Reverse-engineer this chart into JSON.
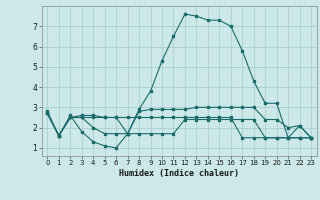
{
  "xlabel": "Humidex (Indice chaleur)",
  "bg_color": "#cce8e8",
  "line_color": "#1a6b6b",
  "grid_color": "#aad0d0",
  "xlim": [
    -0.5,
    23.5
  ],
  "ylim": [
    0.6,
    8.0
  ],
  "yticks": [
    1,
    2,
    3,
    4,
    5,
    6,
    7
  ],
  "xticks": [
    0,
    1,
    2,
    3,
    4,
    5,
    6,
    7,
    8,
    9,
    10,
    11,
    12,
    13,
    14,
    15,
    16,
    17,
    18,
    19,
    20,
    21,
    22,
    23
  ],
  "series1_x": [
    0,
    1,
    2,
    3,
    4,
    5,
    6,
    7,
    8,
    9,
    10,
    11,
    12,
    13,
    14,
    15,
    16,
    17,
    18,
    19,
    20,
    21,
    22,
    23
  ],
  "series1_y": [
    2.8,
    1.6,
    2.6,
    1.8,
    1.3,
    1.1,
    1.0,
    1.7,
    2.9,
    3.8,
    5.3,
    6.5,
    7.6,
    7.5,
    7.3,
    7.3,
    7.0,
    5.8,
    4.3,
    3.2,
    3.2,
    1.5,
    2.1,
    1.5
  ],
  "series2_x": [
    0,
    1,
    2,
    3,
    4,
    5,
    6,
    7,
    8,
    9,
    10,
    11,
    12,
    13,
    14,
    15,
    16,
    17,
    18,
    19,
    20,
    21,
    22,
    23
  ],
  "series2_y": [
    2.7,
    1.6,
    2.5,
    2.6,
    2.6,
    2.5,
    2.5,
    1.7,
    2.8,
    2.9,
    2.9,
    2.9,
    2.9,
    3.0,
    3.0,
    3.0,
    3.0,
    3.0,
    3.0,
    2.4,
    2.4,
    2.0,
    2.1,
    1.5
  ],
  "series3_x": [
    0,
    1,
    2,
    3,
    4,
    5,
    6,
    7,
    8,
    9,
    10,
    11,
    12,
    13,
    14,
    15,
    16,
    17,
    18,
    19,
    20,
    21,
    22,
    23
  ],
  "series3_y": [
    2.7,
    1.6,
    2.5,
    2.5,
    2.0,
    1.7,
    1.7,
    1.7,
    1.7,
    1.7,
    1.7,
    1.7,
    2.4,
    2.4,
    2.4,
    2.4,
    2.4,
    2.4,
    2.4,
    1.5,
    1.5,
    1.5,
    1.5,
    1.5
  ],
  "series4_x": [
    0,
    1,
    2,
    3,
    4,
    5,
    6,
    7,
    8,
    9,
    10,
    11,
    12,
    13,
    14,
    15,
    16,
    17,
    18,
    19,
    20,
    21,
    22,
    23
  ],
  "series4_y": [
    2.7,
    1.6,
    2.5,
    2.5,
    2.5,
    2.5,
    2.5,
    2.5,
    2.5,
    2.5,
    2.5,
    2.5,
    2.5,
    2.5,
    2.5,
    2.5,
    2.5,
    1.5,
    1.5,
    1.5,
    1.5,
    1.5,
    1.5,
    1.5
  ]
}
